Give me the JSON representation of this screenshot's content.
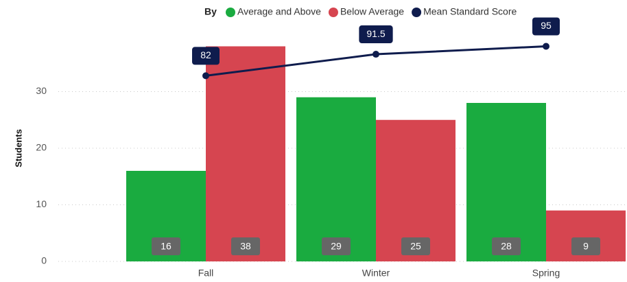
{
  "chart_data": {
    "type": "bar",
    "y_label": "Students",
    "legend_title": "By",
    "categories": [
      "Fall",
      "Winter",
      "Spring"
    ],
    "series": [
      {
        "name": "Average and Above",
        "color": "#1aab40",
        "values": [
          16,
          29,
          28
        ]
      },
      {
        "name": "Below Average",
        "color": "#d64550",
        "values": [
          38,
          25,
          9
        ]
      },
      {
        "name": "Mean Standard Score",
        "color": "#0f1c4d",
        "type": "line",
        "axis": "y2",
        "values": [
          82,
          91.5,
          95
        ]
      }
    ],
    "ylim": [
      0,
      40
    ],
    "yticks": [
      0,
      10,
      20,
      30
    ],
    "y2lim": [
      0,
      100
    ],
    "grid": true
  }
}
